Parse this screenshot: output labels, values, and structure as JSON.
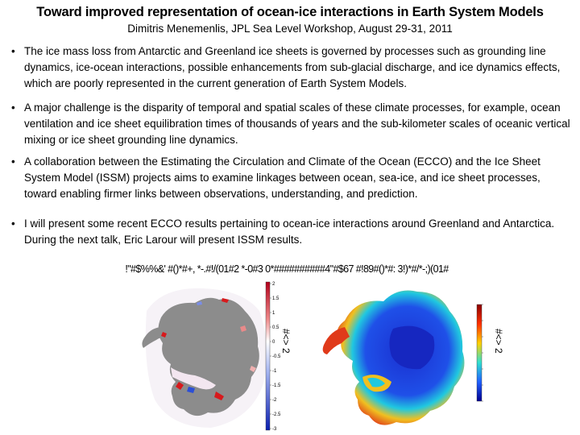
{
  "title": "Toward improved representation of ocean-ice interactions in Earth System Models",
  "subtitle": "Dimitris Menemenlis, JPL Sea Level Workshop, August 29-31, 2011",
  "bullets": [
    {
      "marker": "•",
      "text": "The ice mass loss from Antarctic and Greenland ice sheets is governed by processes such as grounding line dynamics, ice-ocean interactions, possible enhancements from sub-glacial discharge, and ice dynamics effects, which are poorly represented in the current generation of Earth System Models."
    },
    {
      "marker": "•",
      "text": "A major challenge is the disparity of temporal and spatial scales of these climate processes, for example, ocean ventilation and ice sheet equilibration times of thousands of years and the sub-kilometer scales of oceanic vertical mixing or ice sheet grounding line dynamics."
    },
    {
      "marker": "•",
      "text": "A collaboration between the Estimating the Circulation and Climate of the Ocean (ECCO) and the Ice Sheet System Model (ISSM) projects aims to examine linkages between ocean, sea-ice, and ice sheet processes, toward enabling firmer links between observations, understanding, and prediction."
    },
    {
      "marker": "•",
      "text": "I will present some recent ECCO results pertaining to ocean-ice interactions around Greenland and Antarctica.  During the next talk, Eric Larour will present ISSM results."
    }
  ],
  "figure": {
    "caption": "!\"#$%%&' #()*#+, *-.#!/(01#2 *-0#3 0*##########4\"#$67 #!89#()*#: 3!)*#/*-;)(01#",
    "left_map": {
      "colorbar_ticks": [
        "2",
        "1.5",
        "1",
        "0.5",
        "0",
        "-0.5",
        "-1",
        "-1.5",
        "-2",
        "-2.5",
        "-3"
      ],
      "side_label": "#<> 2",
      "colors": {
        "land": "#8c8c8c",
        "positive": "#d7191c",
        "negative": "#2c4fd6",
        "neutral": "#ffffff"
      }
    },
    "right_map": {
      "side_label": "#<> 2",
      "colors": {
        "land_interior": "#1a2fd0",
        "coast_high": "#e03a1a",
        "mid": "#f0c020",
        "cyan": "#20c8e0",
        "ocean": "#ffffff"
      }
    }
  }
}
